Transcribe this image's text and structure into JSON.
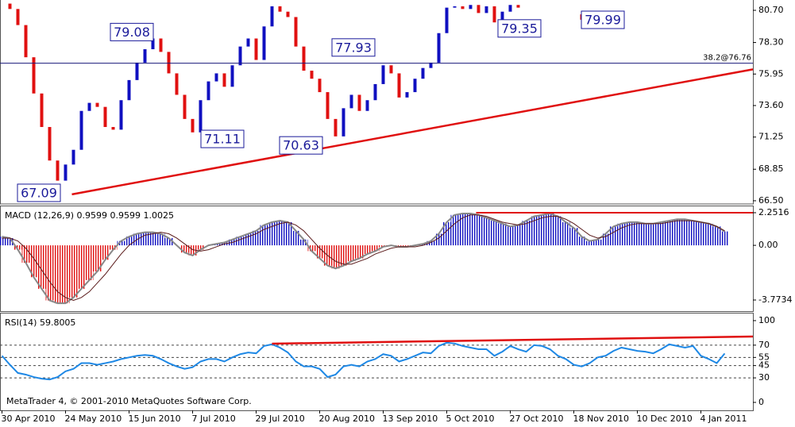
{
  "chart_data": [
    {
      "type": "candlestick",
      "xlim": [
        -0.25,
        94.55
      ],
      "ylim": [
        66.26,
        81.47
      ],
      "yticks": [
        {
          "value": 80.7,
          "label": "80.70"
        },
        {
          "value": 78.3,
          "label": "78.30"
        },
        75.95,
        {
          "value": 73.6,
          "label": "73.60"
        },
        71.25,
        68.85,
        {
          "value": 66.5,
          "label": "66.50"
        }
      ],
      "up_color": "#1010c0",
      "down_color": "#e01010",
      "values": [
        81.2,
        80.8,
        79.6,
        77.2,
        74.5,
        72.0,
        69.5,
        68.0,
        69.2,
        70.3,
        73.2,
        73.8,
        73.5,
        72.0,
        71.8,
        74.0,
        75.5,
        76.8,
        77.8,
        78.6,
        77.6,
        76.0,
        74.4,
        72.6,
        71.6,
        74.0,
        75.4,
        76.0,
        75.0,
        76.6,
        78.0,
        78.6,
        77.0,
        79.5,
        81.0,
        80.6,
        80.2,
        78.0,
        76.2,
        75.6,
        74.6,
        72.6,
        71.3,
        73.4,
        74.4,
        73.2,
        74.0,
        75.2,
        76.6,
        76.0,
        74.2,
        74.6,
        75.6,
        76.4,
        76.8,
        79.0,
        80.9,
        81.0,
        80.8,
        81.1,
        80.5,
        81.0,
        79.8,
        80.6,
        81.1,
        80.9,
        null,
        null,
        null,
        null,
        null,
        null,
        80.4,
        80.0,
        80.6,
        null,
        null,
        null,
        null,
        null,
        null,
        null,
        null,
        null,
        null,
        null,
        null,
        null,
        null,
        null,
        null,
        null
      ],
      "annotations": [
        {
          "value": 79.08,
          "x": 13.9
        },
        {
          "value": 71.11,
          "x": 25.3
        },
        {
          "value": 67.09,
          "x": 2.2
        },
        {
          "value": 70.63,
          "x": 35.2
        },
        {
          "value": 77.93,
          "x": 41.8
        },
        {
          "value": 79.35,
          "x": 62.7
        },
        {
          "value": 79.99,
          "x": 73.2
        }
      ],
      "hline": {
        "value": 76.76,
        "label": "38.2@76.76",
        "color": "#1a1a7a"
      },
      "trendline": {
        "x": [
          8.8,
          94.55
        ],
        "y": [
          66.98,
          76.3
        ],
        "color": "#e01010"
      }
    },
    {
      "type": "bar",
      "title": "MACD (12,26,9) 0.9599 0.9599 1.0025",
      "xlim": [
        -0.25,
        94.55
      ],
      "ylim": [
        -4.54,
        2.69
      ],
      "yticks": [
        2.2516,
        {
          "value": 0,
          "label": "0.00"
        },
        -3.7734
      ],
      "up_color": "#1010c0",
      "down_color": "#e01010",
      "values": [
        0.6,
        0.5,
        -0.3,
        -1.2,
        -2.2,
        -3.0,
        -3.8,
        -4.0,
        -4.0,
        -3.6,
        -3.0,
        -2.4,
        -1.8,
        -1.0,
        -0.3,
        0.3,
        0.6,
        0.8,
        0.9,
        0.9,
        0.8,
        0.5,
        0.0,
        -0.5,
        -0.7,
        -0.3,
        0.0,
        0.1,
        0.2,
        0.4,
        0.6,
        0.8,
        1.0,
        1.4,
        1.6,
        1.7,
        1.6,
        1.0,
        0.4,
        -0.4,
        -0.9,
        -1.4,
        -1.6,
        -1.4,
        -1.1,
        -0.9,
        -0.6,
        -0.4,
        -0.1,
        0.0,
        -0.1,
        -0.1,
        0.0,
        0.1,
        0.3,
        0.8,
        1.6,
        2.1,
        2.2,
        2.2,
        2.1,
        1.9,
        1.7,
        1.5,
        1.3,
        1.4,
        1.7,
        2.0,
        2.1,
        2.2,
        2.0,
        1.6,
        1.2,
        0.6,
        0.3,
        0.4,
        0.8,
        1.3,
        1.5,
        1.6,
        1.6,
        1.5,
        1.5,
        1.6,
        1.7,
        1.8,
        1.8,
        1.7,
        1.6,
        1.5,
        1.3,
        0.96
      ],
      "signal": {
        "color": "#5a1a1a",
        "values": [
          0.5,
          0.5,
          0.3,
          -0.2,
          -0.9,
          -1.7,
          -2.5,
          -3.2,
          -3.6,
          -3.8,
          -3.6,
          -3.2,
          -2.6,
          -2.0,
          -1.3,
          -0.6,
          0.0,
          0.4,
          0.7,
          0.8,
          0.9,
          0.8,
          0.5,
          0.1,
          -0.3,
          -0.4,
          -0.3,
          -0.1,
          0.1,
          0.2,
          0.4,
          0.6,
          0.8,
          1.1,
          1.3,
          1.5,
          1.6,
          1.4,
          1.0,
          0.4,
          -0.2,
          -0.7,
          -1.1,
          -1.3,
          -1.3,
          -1.1,
          -0.9,
          -0.6,
          -0.4,
          -0.2,
          -0.1,
          -0.1,
          -0.1,
          0.0,
          0.2,
          0.5,
          1.0,
          1.5,
          1.9,
          2.1,
          2.1,
          2.0,
          1.8,
          1.6,
          1.5,
          1.4,
          1.5,
          1.7,
          1.9,
          2.0,
          2.0,
          1.8,
          1.5,
          1.1,
          0.7,
          0.5,
          0.6,
          0.9,
          1.2,
          1.4,
          1.5,
          1.5,
          1.5,
          1.5,
          1.6,
          1.7,
          1.7,
          1.7,
          1.6,
          1.5,
          1.3,
          1.0
        ]
      },
      "resistance": {
        "x": [
          59.7,
          94.55
        ],
        "value": 2.2516,
        "color": "#e01010"
      }
    },
    {
      "type": "line",
      "title": "RSI(14) 59.8005",
      "xlim": [
        -0.25,
        94.55
      ],
      "ylim": [
        -9.7,
        108.7
      ],
      "yticks": [
        100,
        70,
        55,
        45,
        30,
        0
      ],
      "levels": [
        70,
        55,
        45,
        30
      ],
      "color": "#1e88e5",
      "values": [
        57,
        46,
        36,
        34,
        31,
        29,
        28,
        31,
        38,
        41,
        48,
        48,
        46,
        48,
        50,
        53,
        55,
        57,
        58,
        57,
        53,
        48,
        44,
        41,
        43,
        50,
        53,
        53,
        50,
        55,
        59,
        61,
        60,
        69,
        71,
        67,
        61,
        50,
        44,
        44,
        41,
        31,
        34,
        44,
        46,
        44,
        50,
        53,
        59,
        57,
        50,
        53,
        57,
        61,
        60,
        69,
        73,
        72,
        69,
        67,
        65,
        65,
        57,
        62,
        69,
        65,
        62,
        70,
        69,
        65,
        57,
        53,
        46,
        44,
        48,
        55,
        57,
        63,
        67,
        65,
        63,
        62,
        60,
        65,
        71,
        69,
        67,
        69,
        57,
        53,
        48,
        59.8
      ],
      "trendline": {
        "x": [
          34,
          94.55
        ],
        "y": [
          71.8,
          80.6
        ],
        "color": "#e01010"
      },
      "xticks": [
        {
          "value": 0,
          "label": "30 Apr 2010"
        },
        {
          "value": 8,
          "label": "24 May 2010"
        },
        {
          "value": 16,
          "label": "15 Jun 2010"
        },
        {
          "value": 24,
          "label": "7 Jul 2010"
        },
        {
          "value": 32,
          "label": "29 Jul 2010"
        },
        {
          "value": 40,
          "label": "20 Aug 2010"
        },
        {
          "value": 48,
          "label": "13 Sep 2010"
        },
        {
          "value": 56,
          "label": "5 Oct 2010"
        },
        {
          "value": 64,
          "label": "27 Oct 2010"
        },
        {
          "value": 72,
          "label": "18 Nov 2010"
        },
        {
          "value": 80,
          "label": "10 Dec 2010"
        },
        {
          "value": 88,
          "label": "4 Jan 2011"
        }
      ],
      "footer": "MetaTrader 4, © 2001-2010 MetaQuotes Software Corp."
    }
  ]
}
